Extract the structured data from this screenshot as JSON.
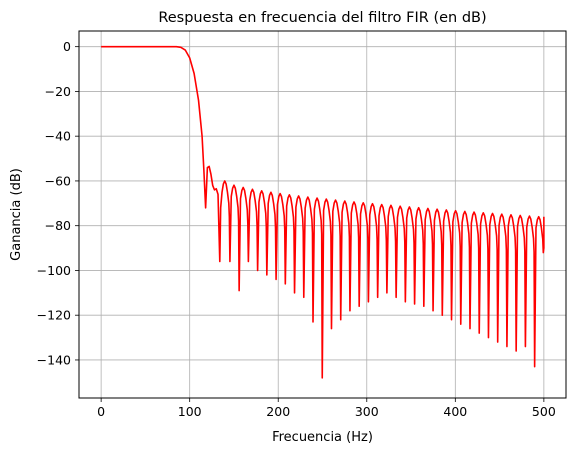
{
  "chart_data": {
    "type": "line",
    "title": "Respuesta en frecuencia del filtro FIR (en dB)",
    "xlabel": "Frecuencia (Hz)",
    "ylabel": "Ganancia (dB)",
    "xlim": [
      -25,
      525
    ],
    "ylim": [
      -157,
      7
    ],
    "xticks": [
      0,
      100,
      200,
      300,
      400,
      500
    ],
    "yticks": [
      0,
      -20,
      -40,
      -60,
      -80,
      -100,
      -120,
      -140
    ],
    "xtick_labels": [
      "0",
      "100",
      "200",
      "300",
      "400",
      "500"
    ],
    "ytick_labels": [
      "0",
      "−20",
      "−40",
      "−60",
      "−80",
      "−100",
      "−120",
      "−140"
    ],
    "grid": true,
    "series": [
      {
        "color": "#ff0000",
        "passband": [
          [
            0,
            0
          ],
          [
            85,
            0
          ],
          [
            90,
            -0.3
          ],
          [
            95,
            -1.5
          ],
          [
            100,
            -5
          ],
          [
            105,
            -12
          ],
          [
            110,
            -24
          ],
          [
            114,
            -40
          ],
          [
            116,
            -55
          ],
          [
            118,
            -72
          ]
        ],
        "first_sidelobe": [
          [
            118,
            -72
          ],
          [
            120,
            -54
          ],
          [
            122,
            -53.5
          ],
          [
            124,
            -57
          ],
          [
            126,
            -62
          ],
          [
            128,
            -64
          ],
          [
            130,
            -63.5
          ],
          [
            132,
            -66
          ],
          [
            134,
            -96
          ],
          [
            135,
            -72
          ]
        ],
        "sidelobe_start_x": 135,
        "sidelobe_end_x": 500,
        "sidelobe_period": 10.5,
        "sidelobe_peak_start": -60,
        "sidelobe_peak_end": -76,
        "nulls": [
          -96,
          -109,
          -96,
          -100,
          -102,
          -104,
          -106,
          -110,
          -112,
          -123,
          -148,
          -126,
          -122,
          -118,
          -116,
          -114,
          -112,
          -110,
          -112,
          -114,
          -115,
          -116,
          -118,
          -120,
          -122,
          -124,
          -126,
          -128,
          -130,
          -132,
          -134,
          -136,
          -134,
          -143,
          -90
        ],
        "end": [
          [
            500,
            -76
          ]
        ]
      }
    ]
  }
}
